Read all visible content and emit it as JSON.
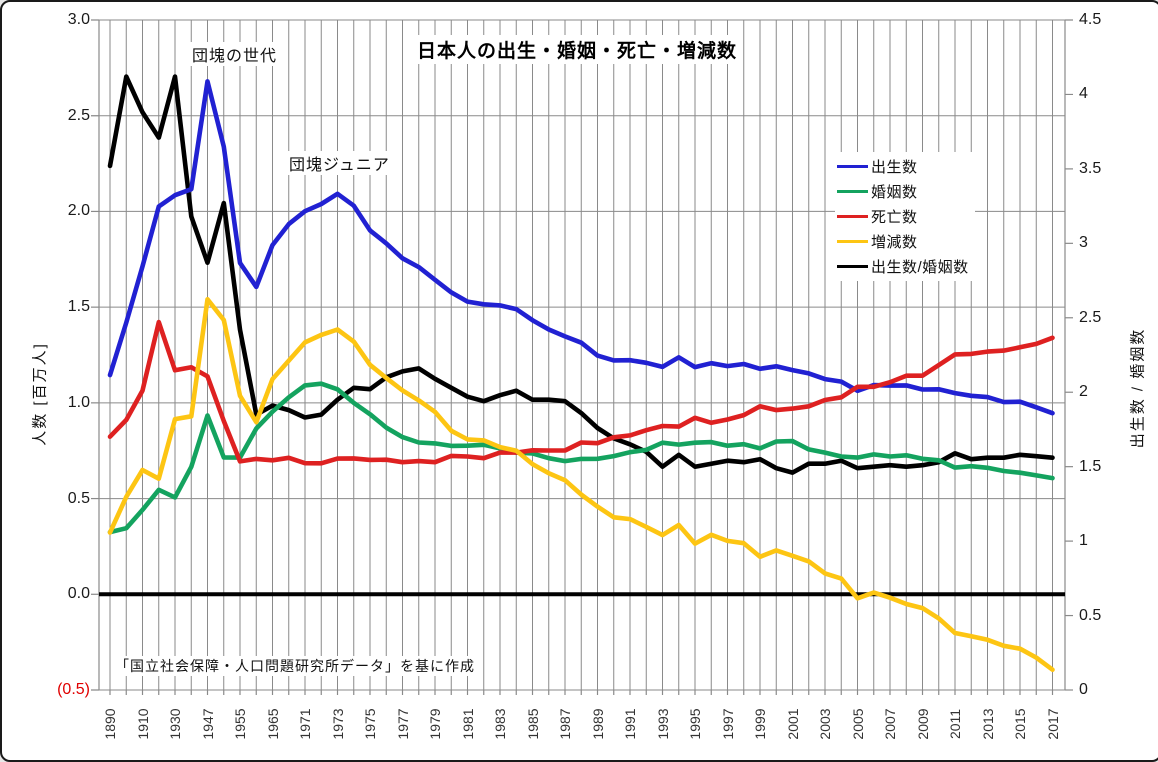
{
  "chart_title": "日本人の出生・婚姻・死亡・増減数",
  "annotations": {
    "baby_boom": "団塊の世代",
    "baby_boom_junior": "団塊ジュニア"
  },
  "source_note": "「国立社会保障・人口問題研究所データ」を基に作成",
  "left_axis": {
    "title": "人数 [百万人]",
    "ticks": [
      "3.0",
      "2.5",
      "2.0",
      "1.5",
      "1.0",
      "0.5",
      "0.0",
      "(0.5)"
    ],
    "tick_values": [
      3.0,
      2.5,
      2.0,
      1.5,
      1.0,
      0.5,
      0.0,
      -0.5
    ],
    "negative_tick_color": "#e00000"
  },
  "right_axis": {
    "title": "出生数 / 婚姻数",
    "ticks": [
      "4.5",
      "4",
      "3.5",
      "3",
      "2.5",
      "2",
      "1.5",
      "1",
      "0.5",
      "0"
    ],
    "tick_values": [
      4.5,
      4.0,
      3.5,
      3.0,
      2.5,
      2.0,
      1.5,
      1.0,
      0.5,
      0.0
    ]
  },
  "chart_data": {
    "type": "line",
    "title": "日本人の出生・婚姻・死亡・増減数",
    "xlabel": "",
    "ylabel_left": "人数 [百万人]",
    "ylabel_right": "出生数 / 婚姻数",
    "left_ylim": [
      -0.5,
      3.0
    ],
    "right_ylim": [
      0,
      4.5
    ],
    "grid": true,
    "legend_position": "upper-right",
    "zero_line": true,
    "categories": [
      "1890",
      "1900",
      "1910",
      "1920",
      "1930",
      "1940",
      "1947",
      "1950",
      "1955",
      "1960",
      "1965",
      "1970",
      "1971",
      "1972",
      "1973",
      "1974",
      "1975",
      "1976",
      "1977",
      "1978",
      "1979",
      "1980",
      "1981",
      "1982",
      "1983",
      "1984",
      "1985",
      "1986",
      "1987",
      "1988",
      "1989",
      "1990",
      "1991",
      "1992",
      "1993",
      "1994",
      "1995",
      "1996",
      "1997",
      "1998",
      "1999",
      "2000",
      "2001",
      "2002",
      "2003",
      "2004",
      "2005",
      "2006",
      "2007",
      "2008",
      "2009",
      "2010",
      "2011",
      "2012",
      "2013",
      "2014",
      "2015",
      "2016",
      "2017"
    ],
    "x_tick_labels": [
      "1890",
      "1910",
      "1930",
      "1947",
      "1955",
      "1965",
      "1971",
      "1973",
      "1975",
      "1977",
      "1979",
      "1981",
      "1983",
      "1985",
      "1987",
      "1989",
      "1991",
      "1993",
      "1995",
      "1997",
      "1999",
      "2001",
      "2003",
      "2005",
      "2007",
      "2009",
      "2011",
      "2013",
      "2015",
      "2017"
    ],
    "x_tick_every": 2,
    "series": [
      {
        "name": "出生数",
        "color": "#2121d2",
        "axis": "left",
        "values": [
          1.145,
          1.42,
          1.713,
          2.026,
          2.085,
          2.116,
          2.679,
          2.338,
          1.731,
          1.606,
          1.824,
          1.934,
          2.001,
          2.039,
          2.092,
          2.03,
          1.901,
          1.833,
          1.755,
          1.709,
          1.643,
          1.577,
          1.529,
          1.515,
          1.509,
          1.49,
          1.432,
          1.383,
          1.347,
          1.314,
          1.247,
          1.222,
          1.223,
          1.209,
          1.188,
          1.238,
          1.187,
          1.207,
          1.192,
          1.203,
          1.178,
          1.191,
          1.171,
          1.154,
          1.124,
          1.111,
          1.063,
          1.093,
          1.09,
          1.091,
          1.07,
          1.071,
          1.051,
          1.037,
          1.03,
          1.004,
          1.006,
          0.977,
          0.946
        ]
      },
      {
        "name": "婚姻数",
        "color": "#14a35f",
        "axis": "left",
        "values": [
          0.325,
          0.345,
          0.441,
          0.546,
          0.506,
          0.666,
          0.934,
          0.715,
          0.714,
          0.866,
          0.954,
          1.029,
          1.091,
          1.1,
          1.071,
          1.0,
          0.941,
          0.871,
          0.821,
          0.793,
          0.788,
          0.775,
          0.776,
          0.781,
          0.762,
          0.74,
          0.736,
          0.711,
          0.696,
          0.707,
          0.708,
          0.722,
          0.742,
          0.754,
          0.792,
          0.782,
          0.792,
          0.795,
          0.776,
          0.784,
          0.762,
          0.798,
          0.8,
          0.757,
          0.74,
          0.72,
          0.714,
          0.731,
          0.72,
          0.726,
          0.708,
          0.7,
          0.662,
          0.669,
          0.661,
          0.644,
          0.635,
          0.621,
          0.607
        ]
      },
      {
        "name": "死亡数",
        "color": "#de2121",
        "axis": "left",
        "values": [
          0.823,
          0.911,
          1.064,
          1.422,
          1.17,
          1.186,
          1.138,
          0.905,
          0.694,
          0.707,
          0.7,
          0.713,
          0.685,
          0.684,
          0.709,
          0.71,
          0.702,
          0.703,
          0.69,
          0.696,
          0.69,
          0.723,
          0.72,
          0.711,
          0.74,
          0.74,
          0.752,
          0.751,
          0.751,
          0.793,
          0.789,
          0.82,
          0.83,
          0.857,
          0.879,
          0.876,
          0.922,
          0.896,
          0.913,
          0.936,
          0.982,
          0.962,
          0.97,
          0.982,
          1.015,
          1.029,
          1.084,
          1.084,
          1.108,
          1.142,
          1.142,
          1.197,
          1.253,
          1.256,
          1.268,
          1.273,
          1.29,
          1.308,
          1.34
        ]
      },
      {
        "name": "増減数",
        "color": "#fdc513",
        "axis": "left",
        "values": [
          0.322,
          0.509,
          0.649,
          0.604,
          0.915,
          0.93,
          1.541,
          1.433,
          1.037,
          0.899,
          1.124,
          1.221,
          1.316,
          1.355,
          1.383,
          1.32,
          1.199,
          1.13,
          1.065,
          1.013,
          0.953,
          0.854,
          0.809,
          0.804,
          0.769,
          0.75,
          0.68,
          0.632,
          0.596,
          0.521,
          0.458,
          0.402,
          0.393,
          0.352,
          0.309,
          0.362,
          0.265,
          0.311,
          0.279,
          0.267,
          0.196,
          0.229,
          0.201,
          0.172,
          0.109,
          0.082,
          -0.021,
          0.009,
          -0.018,
          -0.051,
          -0.072,
          -0.126,
          -0.202,
          -0.219,
          -0.238,
          -0.269,
          -0.284,
          -0.331,
          -0.394
        ]
      },
      {
        "name": "出生数/婚姻数",
        "color": "#000000",
        "axis": "right",
        "values": [
          3.52,
          4.12,
          3.88,
          3.71,
          4.12,
          3.18,
          2.87,
          3.27,
          2.42,
          1.85,
          1.91,
          1.88,
          1.83,
          1.85,
          1.95,
          2.03,
          2.02,
          2.1,
          2.14,
          2.16,
          2.09,
          2.03,
          1.97,
          1.94,
          1.98,
          2.01,
          1.95,
          1.95,
          1.94,
          1.86,
          1.76,
          1.69,
          1.65,
          1.6,
          1.5,
          1.58,
          1.5,
          1.52,
          1.54,
          1.53,
          1.55,
          1.49,
          1.46,
          1.52,
          1.52,
          1.54,
          1.49,
          1.5,
          1.51,
          1.5,
          1.51,
          1.53,
          1.59,
          1.55,
          1.56,
          1.56,
          1.58,
          1.57,
          1.56
        ]
      }
    ],
    "grid_color": "#8a8a8a"
  }
}
